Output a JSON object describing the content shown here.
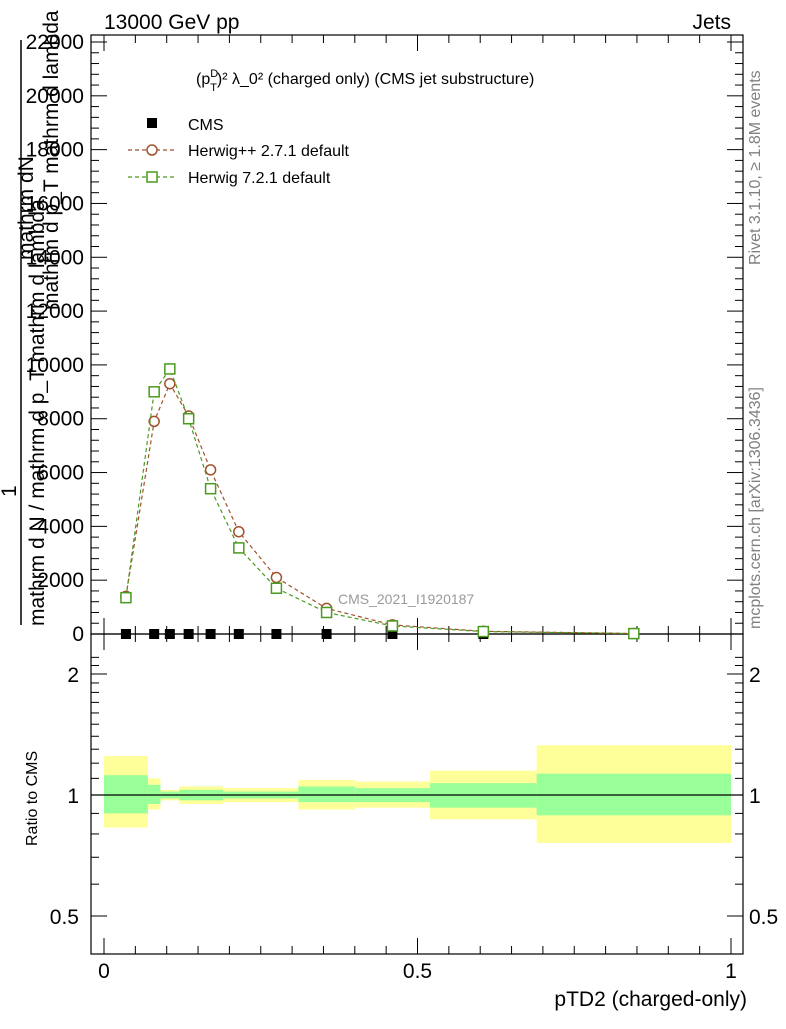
{
  "header": {
    "left": "13000 GeV pp",
    "right": "Jets"
  },
  "side": {
    "rivet": "Rivet 3.1.10, ≥ 1.8M events",
    "mcplots": "mcplots.cern.ch [arXiv:1306.3436]"
  },
  "main": {
    "title_parts": {
      "p": "(p",
      "sup": "D",
      "sub": "T",
      "rest": ")² λ_0² (charged only) (CMS jet substructure)"
    },
    "ylabel_lines": [
      "mathrm dN",
      "mathrm d p_T mathrm d lambda",
      "1",
      "mathrm d N / mathrm d p_T mathrm d lambda"
    ],
    "watermark": "CMS_2021_I1920187",
    "legend": [
      "CMS",
      "Herwig++ 2.7.1 default",
      "Herwig 7.2.1 default"
    ]
  },
  "ratio": {
    "ylabel": "Ratio to CMS"
  },
  "colors": {
    "herwigpp": "#a0522d",
    "herwig7": "#4a9a1e",
    "band_inner": "#99ff99",
    "band_outer": "#ffff99",
    "data": "#000000"
  },
  "chart_data": [
    {
      "type": "line",
      "xlabel": "pTD2 (charged-only)",
      "xlim": [
        0,
        1
      ],
      "ylim": [
        0,
        22000
      ],
      "yticks": [
        0,
        2000,
        4000,
        6000,
        8000,
        10000,
        12000,
        14000,
        16000,
        18000,
        20000,
        22000
      ],
      "ytick_labels": [
        "0",
        "2000",
        "4000",
        "6000",
        "8000",
        "10000",
        "12000",
        "14000",
        "16000",
        "18000",
        "20000",
        "22000"
      ],
      "series": [
        {
          "name": "CMS",
          "marker": "filled-square",
          "x": [
            0.035,
            0.08,
            0.105,
            0.135,
            0.17,
            0.215,
            0.275,
            0.355,
            0.46,
            0.605,
            0.845
          ],
          "y": [
            0,
            0,
            0,
            0,
            0,
            0,
            0,
            0,
            0,
            0,
            0
          ]
        },
        {
          "name": "Herwig++ 2.7.1 default",
          "marker": "open-circle",
          "x": [
            0.035,
            0.08,
            0.105,
            0.135,
            0.17,
            0.215,
            0.275,
            0.355,
            0.46,
            0.605,
            0.845
          ],
          "y": [
            1400,
            7900,
            9300,
            8100,
            6100,
            3800,
            2100,
            950,
            340,
            100,
            20
          ]
        },
        {
          "name": "Herwig 7.2.1 default",
          "marker": "open-square",
          "x": [
            0.035,
            0.08,
            0.105,
            0.135,
            0.17,
            0.215,
            0.275,
            0.355,
            0.46,
            0.605,
            0.845
          ],
          "y": [
            1350,
            9000,
            9850,
            8000,
            5400,
            3200,
            1700,
            800,
            300,
            90,
            15
          ]
        }
      ]
    },
    {
      "type": "area",
      "ylabel": "Ratio to CMS",
      "xlim": [
        0,
        1
      ],
      "ylim": [
        0.4,
        2.3
      ],
      "log_y": true,
      "ytick_labels": {
        "left": [
          "0.5",
          "1",
          "2"
        ],
        "right": [
          "0.5",
          "1",
          "2"
        ],
        "values": [
          0.5,
          1,
          2
        ]
      },
      "xtick_labels": [
        "0",
        "0.5",
        "1"
      ],
      "xtick_values": [
        0,
        0.5,
        1
      ],
      "bins": [
        {
          "x0": 0.0,
          "x1": 0.07,
          "stat_lo": 0.9,
          "stat_hi": 1.12,
          "total_lo": 0.83,
          "total_hi": 1.25
        },
        {
          "x0": 0.07,
          "x1": 0.09,
          "stat_lo": 0.95,
          "stat_hi": 1.06,
          "total_lo": 0.92,
          "total_hi": 1.1
        },
        {
          "x0": 0.09,
          "x1": 0.12,
          "stat_lo": 0.98,
          "stat_hi": 1.02,
          "total_lo": 0.97,
          "total_hi": 1.03
        },
        {
          "x0": 0.12,
          "x1": 0.19,
          "stat_lo": 0.97,
          "stat_hi": 1.03,
          "total_lo": 0.95,
          "total_hi": 1.05
        },
        {
          "x0": 0.19,
          "x1": 0.31,
          "stat_lo": 0.98,
          "stat_hi": 1.02,
          "total_lo": 0.96,
          "total_hi": 1.04
        },
        {
          "x0": 0.31,
          "x1": 0.4,
          "stat_lo": 0.96,
          "stat_hi": 1.05,
          "total_lo": 0.92,
          "total_hi": 1.09
        },
        {
          "x0": 0.4,
          "x1": 0.52,
          "stat_lo": 0.96,
          "stat_hi": 1.04,
          "total_lo": 0.93,
          "total_hi": 1.08
        },
        {
          "x0": 0.52,
          "x1": 0.69,
          "stat_lo": 0.93,
          "stat_hi": 1.07,
          "total_lo": 0.87,
          "total_hi": 1.15
        },
        {
          "x0": 0.69,
          "x1": 1.0,
          "stat_lo": 0.89,
          "stat_hi": 1.13,
          "total_lo": 0.76,
          "total_hi": 1.33
        }
      ]
    }
  ]
}
